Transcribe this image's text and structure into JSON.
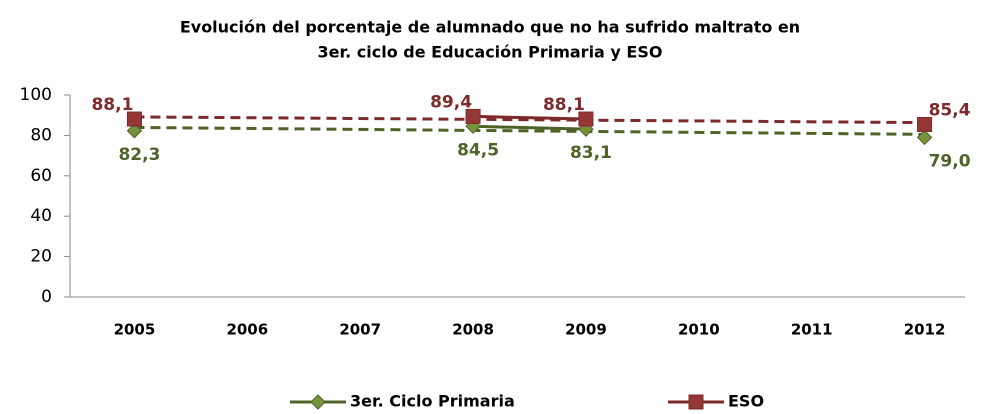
{
  "chart_data": {
    "type": "line",
    "title": "Evolución del porcentaje de alumnado que no ha sufrido maltrato en",
    "subtitle": "3er. ciclo de Educación Primaria y ESO",
    "categories": [
      "2005",
      "2006",
      "2007",
      "2008",
      "2009",
      "2010",
      "2011",
      "2012"
    ],
    "series": [
      {
        "name": "3er. Ciclo Primaria",
        "color": "#4f6228",
        "marker": "diamond",
        "values": [
          82.3,
          null,
          null,
          84.5,
          83.1,
          null,
          null,
          79.0
        ],
        "value_labels": [
          "82,3",
          null,
          null,
          "84,5",
          "83,1",
          null,
          null,
          "79,0"
        ]
      },
      {
        "name": "ESO",
        "color": "#7f2a2a",
        "marker": "square",
        "values": [
          88.1,
          null,
          null,
          89.4,
          88.1,
          null,
          null,
          85.4
        ],
        "value_labels": [
          "88,1",
          null,
          null,
          "89,4",
          "88,1",
          null,
          null,
          "85,4"
        ]
      }
    ],
    "ylim": [
      0,
      100
    ],
    "yticks": [
      0,
      20,
      40,
      60,
      80,
      100
    ],
    "trendline": true,
    "legend": "bottom"
  }
}
